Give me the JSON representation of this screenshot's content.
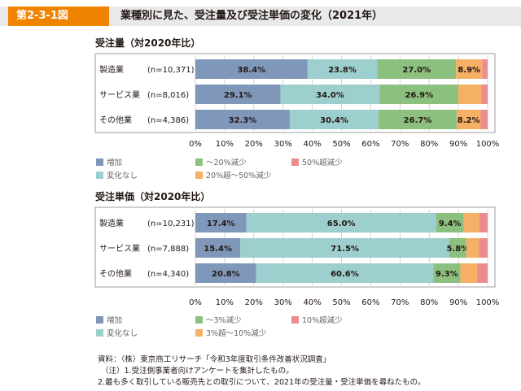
{
  "figure_label": "第2-3-1図",
  "figure_title": "業種別に見た、受注量及び受注単価の変化（2021年）",
  "colors": {
    "増加": "#7f97b9",
    "変化なし": "#9ccfcd",
    "減少小": "#8cc07f",
    "減少中": "#f5b066",
    "減少大": "#ec8c8c",
    "header_tag": "#f08300",
    "header_bg": "#e9e9e9",
    "legend_label": "#666666"
  },
  "chart_data": [
    {
      "type": "bar",
      "orientation": "horizontal-stacked-100",
      "title": "受注量（対2020年比）",
      "categories": [
        "製造業",
        "サービス業",
        "その他業"
      ],
      "n_labels": [
        "(n=10,371)",
        "(n=8,016)",
        "(n=4,386)"
      ],
      "xlim": [
        0,
        100
      ],
      "x_ticks": [
        "0%",
        "10%",
        "20%",
        "30%",
        "40%",
        "50%",
        "60%",
        "70%",
        "80%",
        "90%",
        "100%"
      ],
      "grid": true,
      "legend_position": "bottom",
      "series": [
        {
          "name": "増加",
          "color_key": "増加",
          "values": [
            38.4,
            29.1,
            32.3
          ],
          "labels": [
            "38.4%",
            "29.1%",
            "32.3%"
          ]
        },
        {
          "name": "変化なし",
          "color_key": "変化なし",
          "values": [
            23.8,
            34.0,
            30.4
          ],
          "labels": [
            "23.8%",
            "34.0%",
            "30.4%"
          ]
        },
        {
          "name": "～20%減少",
          "color_key": "減少小",
          "values": [
            27.0,
            26.9,
            26.7
          ],
          "labels": [
            "27.0%",
            "26.9%",
            "26.7%"
          ]
        },
        {
          "name": "20%超～50%減少",
          "color_key": "減少中",
          "values": [
            8.9,
            7.9,
            8.2
          ],
          "labels": [
            "8.9%",
            "",
            "8.2%"
          ]
        },
        {
          "name": "50%超減少",
          "color_key": "減少大",
          "values": [
            1.9,
            2.1,
            2.4
          ],
          "labels": [
            "",
            "",
            ""
          ]
        }
      ],
      "legend_order": [
        "増加",
        "～20%減少",
        "50%超減少",
        "変化なし",
        "20%超～50%減少"
      ]
    },
    {
      "type": "bar",
      "orientation": "horizontal-stacked-100",
      "title": "受注単価（対2020年比）",
      "categories": [
        "製造業",
        "サービス業",
        "その他業"
      ],
      "n_labels": [
        "(n=10,231)",
        "(n=7,888)",
        "(n=4,340)"
      ],
      "xlim": [
        0,
        100
      ],
      "x_ticks": [
        "0%",
        "10%",
        "20%",
        "30%",
        "40%",
        "50%",
        "60%",
        "70%",
        "80%",
        "90%",
        "100%"
      ],
      "grid": true,
      "legend_position": "bottom",
      "series": [
        {
          "name": "増加",
          "color_key": "増加",
          "values": [
            17.4,
            15.4,
            20.8
          ],
          "labels": [
            "17.4%",
            "15.4%",
            "20.8%"
          ]
        },
        {
          "name": "変化なし",
          "color_key": "変化なし",
          "values": [
            65.0,
            71.5,
            60.6
          ],
          "labels": [
            "65.0%",
            "71.5%",
            "60.6%"
          ]
        },
        {
          "name": "～3%減少",
          "color_key": "減少小",
          "values": [
            9.4,
            5.8,
            9.3
          ],
          "labels": [
            "9.4%",
            "5.8%",
            "9.3%"
          ]
        },
        {
          "name": "3%超～10%減少",
          "color_key": "減少中",
          "values": [
            5.3,
            4.3,
            5.7
          ],
          "labels": [
            "",
            "",
            ""
          ]
        },
        {
          "name": "10%超減少",
          "color_key": "減少大",
          "values": [
            2.9,
            3.0,
            3.6
          ],
          "labels": [
            "",
            "",
            ""
          ]
        }
      ],
      "legend_order": [
        "増加",
        "～3%減少",
        "10%超減少",
        "変化なし",
        "3%超～10%減少"
      ]
    }
  ],
  "notes": [
    "資料：（株）東京商工リサーチ「令和3年度取引条件改善状況調査」",
    "（注）1.受注側事業者向けアンケートを集計したもの。",
    "2.最も多く取引している販売先との取引について、2021年の受注量・受注単価を尋ねたもの。"
  ]
}
